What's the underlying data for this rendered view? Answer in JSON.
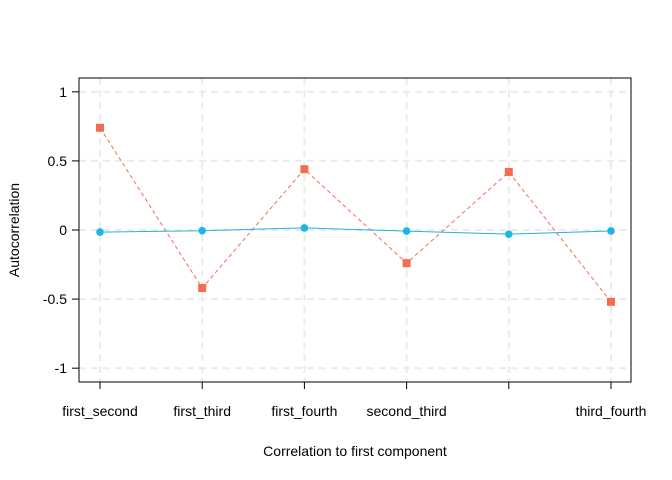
{
  "chart_data": {
    "type": "line",
    "title": "",
    "xlabel": "Correlation to first component",
    "ylabel": "Autocorrelation",
    "categories": [
      "first_second",
      "first_third",
      "first_fourth",
      "second_third",
      "",
      "third_fourth"
    ],
    "ylim": [
      -1.1,
      1.1
    ],
    "yticks": [
      1,
      0.5,
      0,
      -0.5,
      -1
    ],
    "ytick_labels": [
      "1",
      "0.5",
      "0",
      "-0.5",
      "-1"
    ],
    "grid": true,
    "legend": "none",
    "series": [
      {
        "color": "#f46d50",
        "line_style": "dashed",
        "marker": "square",
        "values": [
          0.74,
          -0.42,
          0.44,
          -0.24,
          0.42,
          -0.52
        ]
      },
      {
        "color": "#1ab6e6",
        "line_style": "solid",
        "marker": "circle",
        "values": [
          -0.015,
          -0.005,
          0.015,
          -0.008,
          -0.03,
          -0.007
        ]
      }
    ]
  }
}
